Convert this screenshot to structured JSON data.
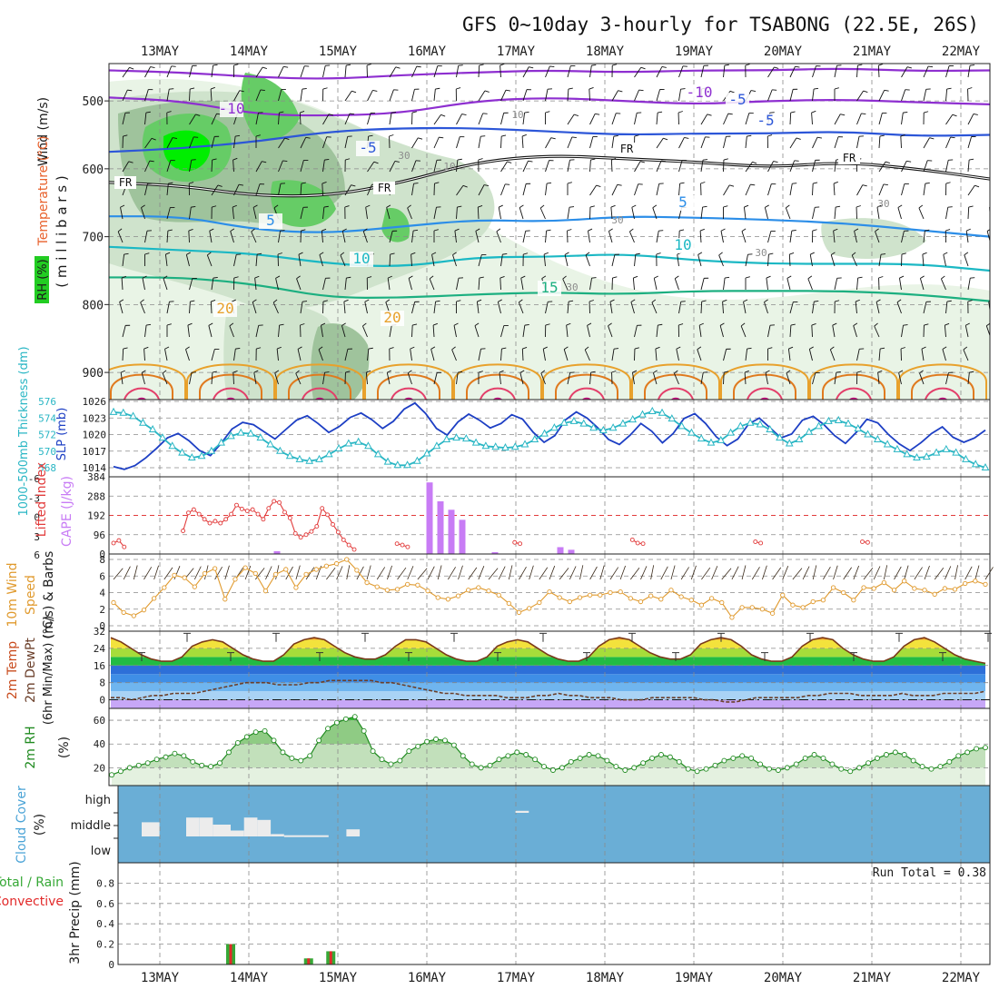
{
  "chart_data": [
    {
      "type": "heatmap",
      "title": "GFS 0~10day 3-hourly for TSABONG (22.5E, 26S)",
      "dates": [
        "13MAY",
        "14MAY",
        "15MAY",
        "16MAY",
        "17MAY",
        "18MAY",
        "19MAY",
        "20MAY",
        "21MAY",
        "22MAY"
      ],
      "ylabel_parts": [
        "Wind (m/s)",
        "Temperature (°C)",
        "(millibars)",
        "RH (%)"
      ],
      "ylabel_wind": "Wind (m/s)",
      "ylabel_temp": "Temperature (°C)",
      "ylabel_mb": "( m i l l i b a r s )",
      "ylabel_rh": "RH (%)",
      "y_ticks": [
        500,
        600,
        700,
        800,
        900
      ],
      "ylim": [
        445,
        940
      ],
      "freezing_label": "FR",
      "isotherm_labels": [
        "-10",
        "-10",
        "-5",
        "-5",
        "-5",
        "5",
        "5",
        "10",
        "10",
        "15",
        "20",
        "20"
      ],
      "rh_contour_labels": [
        "10",
        "30",
        "30",
        "30",
        "30",
        "30",
        "10"
      ],
      "rh_color_key": [
        "#e9f4e6",
        "#cfe3cc",
        "#9fc39c",
        "#66cc66",
        "#00ee00"
      ]
    },
    {
      "type": "line",
      "ylabel_left": "1000-500mb Thickness (dm)",
      "ylabel_right": "SLP (mb)",
      "left_ticks": [
        568,
        570,
        572,
        574,
        576
      ],
      "right_ticks": [
        1014,
        1017,
        1020,
        1023,
        1026
      ],
      "series": [
        {
          "name": "SLP (mb)",
          "axis": "right",
          "color": "#1d3fc4",
          "values": [
            1014.2,
            1013.7,
            1014.4,
            1015.8,
            1017.5,
            1019.4,
            1020.2,
            1018.9,
            1017.1,
            1016.2,
            1018.4,
            1021.0,
            1022.2,
            1021.8,
            1020.5,
            1019.2,
            1020.9,
            1022.6,
            1023.4,
            1022.0,
            1020.4,
            1021.5,
            1023.1,
            1023.9,
            1022.7,
            1021.1,
            1022.4,
            1024.6,
            1025.7,
            1023.8,
            1021.1,
            1019.9,
            1022.3,
            1023.7,
            1022.6,
            1021.2,
            1022.0,
            1023.6,
            1022.8,
            1020.4,
            1018.6,
            1019.8,
            1022.7,
            1024.1,
            1023.0,
            1021.2,
            1019.1,
            1018.2,
            1019.9,
            1022.0,
            1020.6,
            1018.5,
            1020.2,
            1022.9,
            1023.8,
            1022.0,
            1019.6,
            1018.0,
            1019.2,
            1021.9,
            1023.0,
            1021.2,
            1019.4,
            1020.1,
            1022.6,
            1023.3,
            1021.8,
            1019.8,
            1018.4,
            1020.4,
            1022.8,
            1022.1,
            1020.0,
            1018.3,
            1017.1,
            1018.5,
            1020.2,
            1021.4,
            1019.5,
            1018.6,
            1019.4,
            1020.8
          ]
        },
        {
          "name": "1000-500mb Thickness (dm)",
          "axis": "left",
          "color": "#29b6c4",
          "marker": "triangle",
          "values": [
            574.7,
            574.6,
            574.2,
            573.4,
            572.6,
            571.6,
            570.6,
            569.8,
            569.2,
            569.4,
            570.0,
            571.0,
            571.8,
            572.2,
            572.1,
            571.6,
            570.8,
            570.0,
            569.4,
            569.0,
            568.8,
            569.0,
            569.6,
            570.3,
            570.9,
            571.1,
            570.6,
            569.6,
            568.7,
            568.3,
            568.3,
            568.8,
            569.7,
            570.6,
            571.4,
            571.6,
            571.5,
            571.0,
            570.6,
            570.5,
            570.4,
            570.5,
            570.8,
            571.4,
            572.1,
            572.8,
            573.4,
            573.6,
            573.3,
            572.8,
            572.5,
            572.8,
            573.3,
            573.8,
            574.4,
            574.8,
            574.6,
            573.9,
            573.0,
            572.2,
            571.5,
            571.0,
            571.3,
            572.2,
            573.0,
            573.4,
            573.2,
            572.6,
            571.6,
            570.9,
            571.4,
            572.3,
            573.0,
            573.6,
            573.7,
            573.3,
            572.7,
            572.0,
            571.4,
            570.8,
            570.2,
            569.6,
            569.2,
            569.3,
            569.8,
            570.2,
            569.8,
            569.0,
            568.4,
            568.0
          ]
        }
      ]
    },
    {
      "type": "bar",
      "ylabel_left": "Lifted Index",
      "ylabel_right": "CAPE (J/kg)",
      "left_ticks": [
        "-6",
        "-3",
        "0",
        "3",
        "6"
      ],
      "right_ticks": [
        0,
        96,
        192,
        288,
        384
      ],
      "series": [
        {
          "name": "CAPE (J/kg)",
          "axis": "right",
          "color": "#c87cf5",
          "values": [
            0,
            0,
            0,
            0,
            0,
            0,
            0,
            0,
            0,
            0,
            0,
            0,
            0,
            0,
            0,
            14,
            0,
            0,
            0,
            0,
            0,
            0,
            0,
            0,
            0,
            0,
            0,
            0,
            0,
            356,
            262,
            220,
            170,
            0,
            0,
            9,
            0,
            0,
            0,
            0,
            0,
            34,
            21,
            0,
            0,
            0,
            0,
            0,
            0,
            0,
            0,
            0,
            0,
            0,
            0,
            0,
            0,
            0,
            0,
            0,
            0,
            0,
            0,
            0,
            0,
            0,
            0,
            0,
            0,
            0,
            0,
            0,
            0,
            0,
            0,
            0,
            0,
            0,
            0,
            0,
            0
          ]
        },
        {
          "name": "Lifted Index",
          "axis": "left",
          "color": "#e23c3c",
          "values": [
            4.3,
            3.9,
            4.9,
            null,
            null,
            null,
            null,
            null,
            null,
            null,
            null,
            null,
            null,
            2.4,
            -0.4,
            -0.9,
            -0.2,
            0.6,
            1.2,
            0.9,
            1.2,
            0.6,
            -0.2,
            -1.6,
            -1.0,
            -0.7,
            -0.9,
            -0.2,
            0.6,
            -1.1,
            -2.2,
            -2.0,
            -0.5,
            0.4,
            2.8,
            3.4,
            3.0,
            2.5,
            1.7,
            -1.1,
            -0.1,
            1.4,
            2.6,
            3.8,
            4.6,
            5.3,
            null,
            null,
            null,
            null,
            null,
            null,
            null,
            4.4,
            4.6,
            4.9,
            null,
            null,
            null,
            null,
            null,
            null,
            null,
            null,
            null,
            null,
            null,
            null,
            null,
            null,
            null,
            null,
            null,
            null,
            null,
            4.2,
            4.4,
            null,
            null,
            null,
            null,
            null,
            null,
            null,
            null,
            null,
            null,
            null,
            null,
            null,
            null,
            null,
            null,
            null,
            null,
            null,
            null,
            3.8,
            4.3,
            4.4,
            null,
            null,
            null,
            null,
            null,
            null,
            null,
            null,
            null,
            null,
            null,
            null,
            null,
            null,
            null,
            null,
            null,
            null,
            null,
            null,
            4.1,
            4.3,
            null,
            null,
            null,
            null,
            null,
            null,
            null,
            null,
            null,
            null,
            null,
            null,
            null,
            null,
            null,
            null,
            null,
            null,
            4.1,
            4.2,
            null,
            null,
            null,
            null,
            null,
            null,
            null,
            null,
            null,
            null,
            null,
            null,
            null,
            null,
            null,
            null,
            null,
            null,
            null,
            null,
            null,
            null
          ]
        }
      ],
      "zero_line_color": "#e23c3c"
    },
    {
      "type": "line",
      "ylabel_parts": [
        "10m Wind",
        "Speed",
        "(m/s) & Barbs"
      ],
      "ylim": [
        0,
        8
      ],
      "ticks": [
        0,
        2,
        4,
        6,
        8
      ],
      "series": [
        {
          "name": "10m Wind Speed",
          "color": "#e09a2e",
          "values": [
            2.8,
            1.6,
            1.2,
            1.9,
            3.3,
            4.6,
            6.1,
            5.8,
            4.7,
            6.3,
            6.9,
            3.2,
            5.6,
            7.0,
            6.3,
            4.2,
            6.2,
            6.8,
            4.6,
            6.2,
            6.8,
            7.2,
            7.5,
            8.0,
            6.7,
            5.2,
            4.7,
            4.3,
            4.4,
            5.0,
            4.9,
            4.2,
            3.4,
            3.2,
            3.6,
            4.3,
            4.6,
            4.2,
            3.7,
            2.7,
            1.6,
            2.1,
            2.8,
            4.1,
            3.4,
            2.9,
            3.4,
            3.7,
            3.7,
            4.0,
            4.1,
            3.3,
            2.9,
            3.6,
            3.2,
            4.3,
            3.5,
            3.1,
            2.5,
            3.3,
            2.8,
            1.0,
            2.2,
            2.2,
            2.0,
            1.5,
            3.7,
            2.5,
            2.2,
            2.9,
            3.1,
            4.6,
            4.0,
            3.1,
            4.6,
            4.5,
            5.2,
            4.3,
            5.4,
            4.5,
            4.3,
            3.8,
            4.5,
            4.4,
            5.1,
            5.4,
            5.0
          ]
        }
      ]
    },
    {
      "type": "area",
      "ylabel_parts": [
        "2m Temp",
        "2m DewPt",
        "(6hr Min/Max) (°C)"
      ],
      "ylim": [
        -4,
        32
      ],
      "ticks": [
        0,
        8,
        16,
        24,
        32
      ],
      "series": [
        {
          "name": "2m Temp",
          "color": "#7a3a1a",
          "values": [
            29,
            27,
            24,
            21,
            19,
            18,
            18,
            20,
            25,
            27,
            28,
            27,
            24,
            21,
            19,
            18,
            18,
            21,
            26,
            28,
            29,
            28,
            25,
            22,
            20,
            19,
            19,
            21,
            25,
            28,
            28,
            27,
            24,
            21,
            19,
            18,
            18,
            20,
            25,
            27,
            28,
            27,
            24,
            21,
            19,
            18,
            18,
            20,
            25,
            28,
            29,
            28,
            25,
            22,
            20,
            19,
            19,
            21,
            26,
            28,
            29,
            28,
            25,
            21,
            19,
            18,
            18,
            20,
            25,
            28,
            29,
            28,
            24,
            21,
            19,
            18,
            18,
            20,
            25,
            28,
            29,
            27,
            24,
            21,
            19,
            18,
            17
          ]
        },
        {
          "name": "2m DewPt",
          "color": "#6b3f2a",
          "style": "dashed",
          "values": [
            1,
            1,
            0,
            1,
            2,
            2,
            3,
            3,
            3,
            4,
            5,
            6,
            7,
            8,
            8,
            8,
            7,
            7,
            7,
            8,
            8,
            9,
            9,
            9,
            9,
            9,
            8,
            8,
            7,
            6,
            5,
            4,
            3,
            3,
            2,
            2,
            2,
            2,
            1,
            1,
            1,
            2,
            2,
            3,
            2,
            2,
            1,
            1,
            1,
            0,
            0,
            0,
            1,
            1,
            1,
            1,
            1,
            0,
            0,
            -1,
            -1,
            0,
            1,
            1,
            1,
            1,
            1,
            2,
            2,
            3,
            3,
            3,
            2,
            2,
            2,
            2,
            3,
            2,
            2,
            2,
            3,
            3,
            3,
            3,
            4
          ]
        }
      ]
    },
    {
      "type": "area",
      "ylabel_parts": [
        "2m RH",
        "(%)"
      ],
      "ylim": [
        5,
        70
      ],
      "ticks": [
        20,
        40,
        60
      ],
      "series": [
        {
          "name": "2m RH",
          "color": "#1f8a1f",
          "values": [
            14,
            17,
            20,
            22,
            24,
            27,
            29,
            32,
            30,
            25,
            22,
            21,
            24,
            33,
            41,
            46,
            50,
            51,
            43,
            33,
            28,
            26,
            30,
            43,
            53,
            58,
            61,
            63,
            51,
            34,
            27,
            23,
            26,
            34,
            38,
            42,
            44,
            43,
            39,
            30,
            23,
            20,
            22,
            27,
            30,
            33,
            31,
            27,
            21,
            18,
            20,
            25,
            28,
            31,
            30,
            26,
            21,
            18,
            20,
            24,
            28,
            31,
            29,
            25,
            19,
            17,
            19,
            22,
            26,
            28,
            30,
            28,
            23,
            19,
            18,
            20,
            23,
            28,
            31,
            28,
            23,
            19,
            17,
            20,
            24,
            28,
            31,
            33,
            31,
            26,
            21,
            19,
            21,
            25,
            30,
            33,
            36,
            37
          ]
        }
      ]
    },
    {
      "type": "bar",
      "ylabel_parts": [
        "Cloud Cover",
        "(%)"
      ],
      "levels": [
        "high",
        "middle",
        "low"
      ],
      "background": "#6aaed6",
      "cloud_color": "#ececec",
      "segments": [
        {
          "level": "middle",
          "start_day": 0.0,
          "end_day": 0.2,
          "value": 0.6
        },
        {
          "level": "middle",
          "start_day": 0.5,
          "end_day": 0.65,
          "value": 0.8
        },
        {
          "level": "middle",
          "start_day": 0.65,
          "end_day": 0.8,
          "value": 0.8
        },
        {
          "level": "middle",
          "start_day": 0.8,
          "end_day": 1.0,
          "value": 0.5
        },
        {
          "level": "middle",
          "start_day": 1.0,
          "end_day": 1.15,
          "value": 0.25
        },
        {
          "level": "middle",
          "start_day": 1.15,
          "end_day": 1.3,
          "value": 0.8
        },
        {
          "level": "middle",
          "start_day": 1.3,
          "end_day": 1.45,
          "value": 0.7
        },
        {
          "level": "middle",
          "start_day": 1.45,
          "end_day": 1.6,
          "value": 0.1
        },
        {
          "level": "middle",
          "start_day": 1.6,
          "end_day": 2.1,
          "value": 0.05
        },
        {
          "level": "middle",
          "start_day": 2.3,
          "end_day": 2.45,
          "value": 0.3
        },
        {
          "level": "high",
          "start_day": 4.2,
          "end_day": 4.35,
          "value": 0.1
        }
      ]
    },
    {
      "type": "bar",
      "ylabel_parts": [
        "Total / Rain",
        "Convective",
        "3hr Precip (mm)"
      ],
      "ylabel_total": "Total / Rain",
      "ylabel_convective": "Convective",
      "ylabel_precip": "3hr Precip (mm)",
      "ylim": [
        0,
        1
      ],
      "ticks": [
        "0",
        "0.2",
        "0.4",
        "0.6",
        "0.8"
      ],
      "run_total": "Run Total = 0.38",
      "categories_day_offset": [
        1.0,
        1.875,
        2.125
      ],
      "total_values": [
        0.2,
        0.06,
        0.13
      ],
      "convective_values": [
        0.2,
        0.06,
        0.13
      ],
      "total_color": "#36a836",
      "convective_color": "#e22a2a"
    }
  ]
}
